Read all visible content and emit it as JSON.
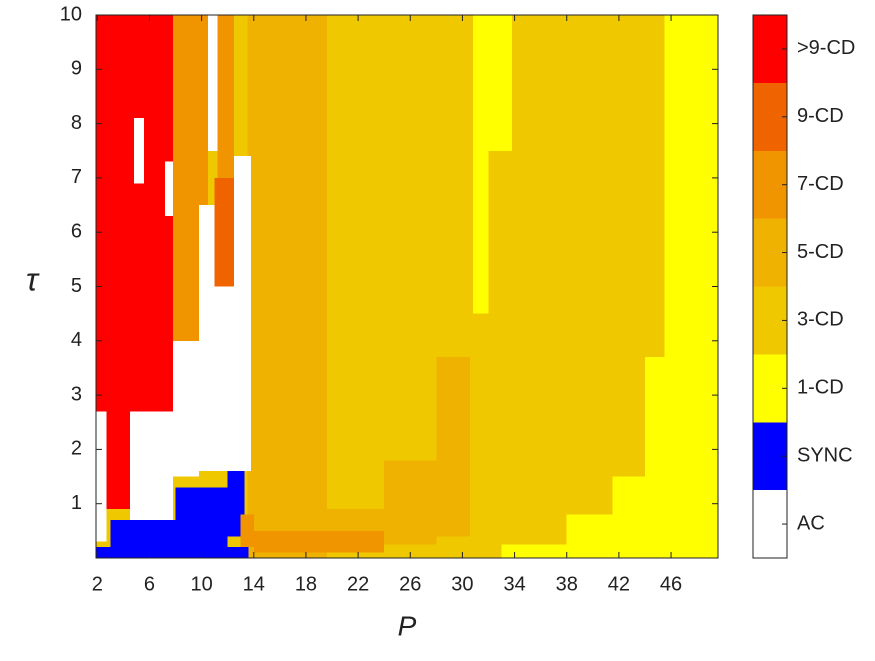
{
  "chart_data": {
    "type": "heatmap",
    "x_label": "P",
    "y_label": "τ",
    "xlim": [
      1.9,
      49.6
    ],
    "ylim": [
      0,
      10
    ],
    "xticks": [
      2,
      6,
      10,
      14,
      18,
      22,
      26,
      30,
      34,
      38,
      42,
      46
    ],
    "yticks": [
      1,
      2,
      3,
      4,
      5,
      6,
      7,
      8,
      9,
      10
    ],
    "classes": [
      {
        "name": "AC",
        "color": "#ffffff"
      },
      {
        "name": "SYNC",
        "color": "#0000ff"
      },
      {
        "name": "1-CD",
        "color": "#ffff00"
      },
      {
        "name": "3-CD",
        "color": "#f0c800"
      },
      {
        "name": "5-CD",
        "color": "#efb200"
      },
      {
        "name": "7-CD",
        "color": "#f09400"
      },
      {
        "name": "9-CD",
        "color": "#f06400"
      },
      {
        "name": ">9-CD",
        "color": "#ff0000"
      }
    ],
    "regions": [
      {
        "class": 3,
        "x": [
          1.9,
          49.6
        ],
        "y": [
          0,
          10
        ]
      },
      {
        "class": 2,
        "x": [
          45.5,
          49.6
        ],
        "y": [
          0,
          10
        ]
      },
      {
        "class": 2,
        "x": [
          44,
          45.5
        ],
        "y": [
          0,
          3.7
        ]
      },
      {
        "class": 2,
        "x": [
          41.5,
          44
        ],
        "y": [
          0,
          1.5
        ]
      },
      {
        "class": 2,
        "x": [
          38,
          41.5
        ],
        "y": [
          0,
          0.8
        ]
      },
      {
        "class": 2,
        "x": [
          33,
          38
        ],
        "y": [
          0,
          0.25
        ]
      },
      {
        "class": 2,
        "x": [
          30.8,
          33.8
        ],
        "y": [
          7.5,
          10
        ]
      },
      {
        "class": 2,
        "x": [
          30.8,
          32
        ],
        "y": [
          4.5,
          7.5
        ]
      },
      {
        "class": 4,
        "x": [
          13.5,
          19.6
        ],
        "y": [
          0,
          10
        ]
      },
      {
        "class": 4,
        "x": [
          19.6,
          24
        ],
        "y": [
          0.15,
          0.9
        ]
      },
      {
        "class": 4,
        "x": [
          24,
          28
        ],
        "y": [
          0.25,
          1.8
        ]
      },
      {
        "class": 4,
        "x": [
          28,
          30.6
        ],
        "y": [
          0.4,
          3.7
        ]
      },
      {
        "class": 5,
        "x": [
          14,
          24
        ],
        "y": [
          0.1,
          0.5
        ]
      },
      {
        "class": 7,
        "x": [
          1.9,
          7.8
        ],
        "y": [
          2.7,
          10
        ]
      },
      {
        "class": 7,
        "x": [
          2.7,
          4.5
        ],
        "y": [
          0.9,
          2.7
        ]
      },
      {
        "class": 0,
        "x": [
          4.8,
          5.6
        ],
        "y": [
          6.9,
          8.1
        ]
      },
      {
        "class": 0,
        "x": [
          7.2,
          7.8
        ],
        "y": [
          6.3,
          7.3
        ]
      },
      {
        "class": 5,
        "x": [
          7.8,
          9.8
        ],
        "y": [
          4,
          10
        ]
      },
      {
        "class": 5,
        "x": [
          9.8,
          10.5
        ],
        "y": [
          6.5,
          10
        ]
      },
      {
        "class": 0,
        "x": [
          9.8,
          13.8
        ],
        "y": [
          1.6,
          6.5
        ]
      },
      {
        "class": 6,
        "x": [
          11,
          12.5
        ],
        "y": [
          5,
          7
        ]
      },
      {
        "class": 0,
        "x": [
          10.5,
          11.2
        ],
        "y": [
          7.5,
          10
        ]
      },
      {
        "class": 5,
        "x": [
          11.2,
          12.5
        ],
        "y": [
          7,
          10
        ]
      },
      {
        "class": 0,
        "x": [
          12.5,
          13.8
        ],
        "y": [
          1.6,
          7.4
        ]
      },
      {
        "class": 0,
        "x": [
          7.8,
          9.8
        ],
        "y": [
          1.5,
          4
        ]
      },
      {
        "class": 0,
        "x": [
          1.9,
          2.7
        ],
        "y": [
          0.3,
          2.7
        ]
      },
      {
        "class": 0,
        "x": [
          4.5,
          7.8
        ],
        "y": [
          0.7,
          2.7
        ]
      },
      {
        "class": 1,
        "x": [
          1.9,
          13.6
        ],
        "y": [
          0,
          0.2
        ]
      },
      {
        "class": 1,
        "x": [
          3,
          12
        ],
        "y": [
          0.2,
          0.7
        ]
      },
      {
        "class": 1,
        "x": [
          8,
          12
        ],
        "y": [
          0.7,
          1.3
        ]
      },
      {
        "class": 1,
        "x": [
          12,
          13.3
        ],
        "y": [
          0.4,
          1.6
        ]
      },
      {
        "class": 5,
        "x": [
          13,
          14
        ],
        "y": [
          0.2,
          0.8
        ]
      }
    ]
  }
}
